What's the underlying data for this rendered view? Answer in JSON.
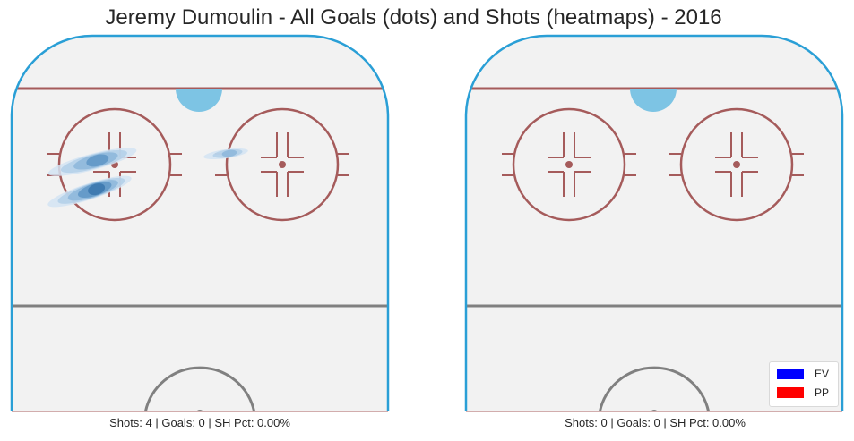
{
  "title": "Jeremy Dumoulin - All Goals (dots) and Shots (heatmaps) - 2016",
  "colors": {
    "ice": "#f2f2f2",
    "boards": "#2a9fd6",
    "red_line": "#a55b5b",
    "blue_line": "#808080",
    "crease": "#7dc4e4",
    "heat": [
      "#d4e4f3",
      "#b3cfe8",
      "#8cb6da",
      "#5e95c6",
      "#3a75ad",
      "#225a92"
    ],
    "ev": "#0000ff",
    "pp": "#ff0000"
  },
  "chart_data": [
    {
      "type": "heatmap",
      "panel": "left",
      "caption": "Shots: 4 | Goals: 0 | SH Pct: 0.00%",
      "shots": 4,
      "goals": 0,
      "sh_pct": "0.00%",
      "shot_density_blobs": [
        {
          "cx": 103,
          "cy": 181,
          "rx": 51,
          "ry": 9,
          "rot": -15,
          "intensity": 4
        },
        {
          "cx": 100,
          "cy": 214,
          "rx": 49,
          "ry": 9,
          "rot": -18,
          "intensity": 5
        },
        {
          "cx": 252,
          "cy": 172,
          "rx": 25,
          "ry": 5,
          "rot": -8,
          "intensity": 3
        }
      ],
      "goal_dots": []
    },
    {
      "type": "heatmap",
      "panel": "right",
      "caption": "Shots: 0 | Goals: 0 | SH Pct: 0.00%",
      "shots": 0,
      "goals": 0,
      "sh_pct": "0.00%",
      "shot_density_blobs": [],
      "goal_dots": [],
      "legend": [
        {
          "label": "EV",
          "color": "#0000ff"
        },
        {
          "label": "PP",
          "color": "#ff0000"
        }
      ]
    }
  ]
}
